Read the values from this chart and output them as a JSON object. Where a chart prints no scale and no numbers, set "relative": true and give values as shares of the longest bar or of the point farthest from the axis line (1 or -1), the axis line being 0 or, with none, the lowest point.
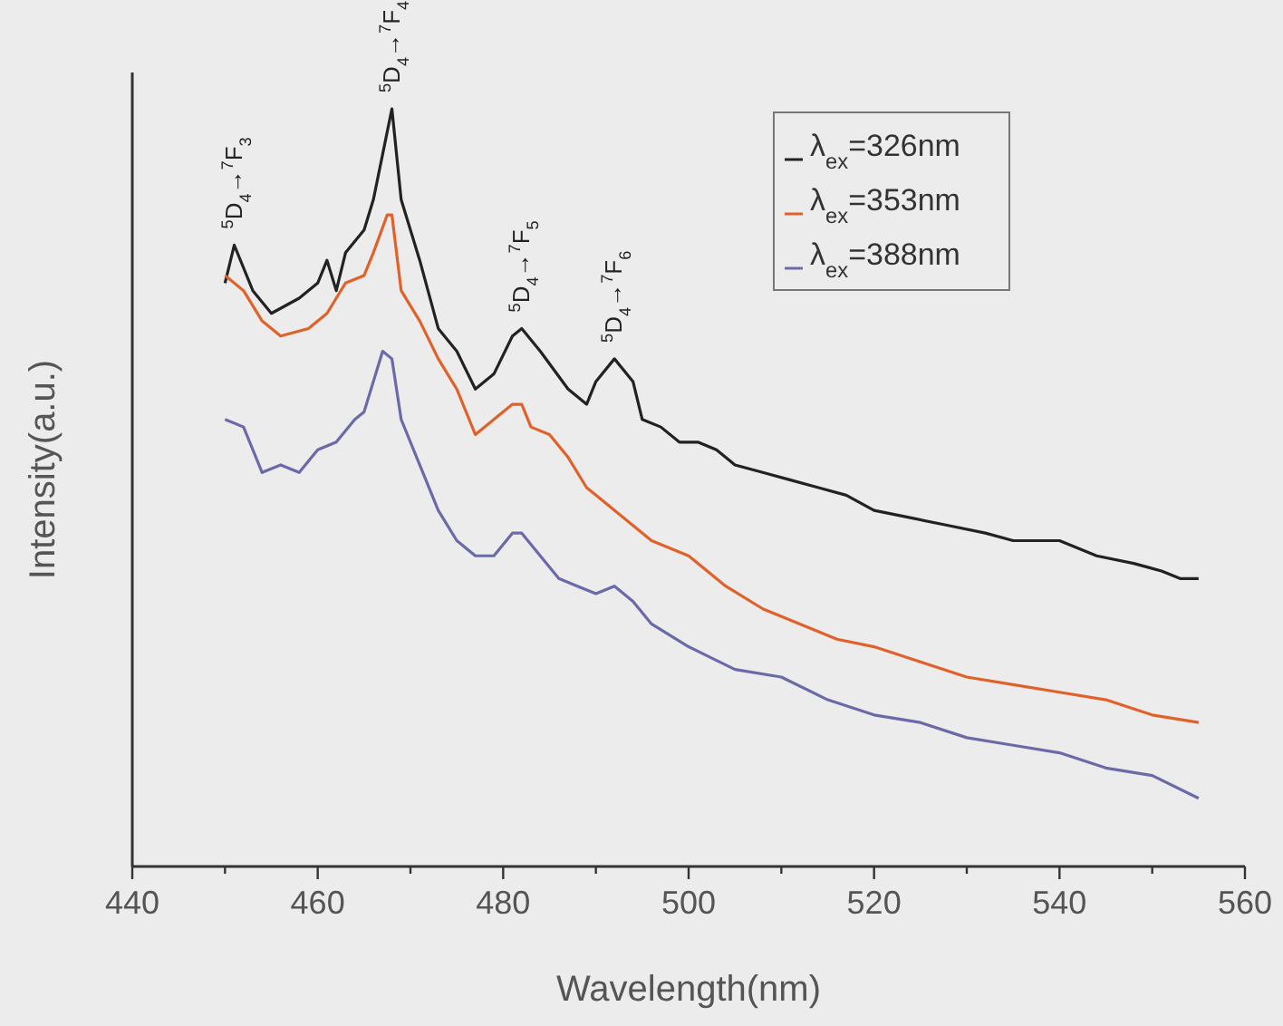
{
  "chart_data": {
    "type": "line",
    "relative": true,
    "tick_labels": "x",
    "xlabel": "Wavelength(nm)",
    "ylabel": "Intensity(a.u.)",
    "xlim": [
      440,
      560
    ],
    "xticks": [
      440,
      {
        "value": 450,
        "label": null
      },
      460,
      {
        "value": 470,
        "label": null
      },
      480,
      {
        "value": 490,
        "label": null
      },
      500,
      {
        "value": 510,
        "label": null
      },
      520,
      {
        "value": 530,
        "label": null
      },
      540,
      {
        "value": 550,
        "label": null
      },
      560
    ],
    "legend": "top right",
    "grid": false,
    "marker": "none",
    "line_style": "solid",
    "annotations": [
      {
        "text": "$^{5}$D$_{4}$→$^{7}$F$_{3}$",
        "x": 451,
        "y": 0.82
      },
      {
        "text": "$^{5}$D$_{4}$→$^{7}$F$_{4}$",
        "x": 468,
        "y": 1
      },
      {
        "text": "$^{5}$D$_{4}$→$^{7}$F$_{5}$",
        "x": 482,
        "y": 0.71
      },
      {
        "text": "$^{5}$D$_{4}$→$^{7}$F$_{6}$",
        "x": 492,
        "y": 0.67
      }
    ],
    "series": [
      {
        "name": "λ$_{ex}$=326nm",
        "color": "#222222",
        "x": [
          450,
          451,
          453,
          455,
          458,
          460,
          461,
          462,
          463,
          465,
          466,
          467.5,
          468,
          469,
          471,
          473,
          475,
          477,
          479,
          481,
          482,
          484,
          487,
          489,
          490,
          492,
          494,
          495,
          497,
          499,
          501,
          503,
          505,
          508,
          511,
          514,
          517,
          520,
          524,
          528,
          532,
          535,
          540,
          544,
          548,
          551,
          553,
          555
        ],
        "values": [
          0.77,
          0.82,
          0.76,
          0.73,
          0.75,
          0.77,
          0.8,
          0.76,
          0.81,
          0.84,
          0.88,
          0.97,
          1,
          0.88,
          0.8,
          0.71,
          0.68,
          0.63,
          0.65,
          0.7,
          0.71,
          0.68,
          0.63,
          0.61,
          0.64,
          0.67,
          0.64,
          0.59,
          0.58,
          0.56,
          0.56,
          0.55,
          0.53,
          0.52,
          0.51,
          0.5,
          0.49,
          0.47,
          0.46,
          0.45,
          0.44,
          0.43,
          0.43,
          0.41,
          0.4,
          0.39,
          0.38,
          0.38
        ]
      },
      {
        "name": "λ$_{ex}$=353nm",
        "color": "#e0622a",
        "x": [
          450,
          452,
          454,
          456,
          459,
          461,
          463,
          465,
          466,
          467.5,
          468,
          469,
          471,
          473,
          475,
          477,
          479,
          481,
          482,
          483,
          485,
          487,
          489,
          490,
          492,
          494,
          496,
          500,
          504,
          508,
          512,
          516,
          520,
          525,
          530,
          535,
          540,
          545,
          550,
          555
        ],
        "values": [
          0.78,
          0.76,
          0.72,
          0.7,
          0.71,
          0.73,
          0.77,
          0.78,
          0.81,
          0.86,
          0.86,
          0.76,
          0.72,
          0.67,
          0.63,
          0.57,
          0.59,
          0.61,
          0.61,
          0.58,
          0.57,
          0.54,
          0.5,
          0.49,
          0.47,
          0.45,
          0.43,
          0.41,
          0.37,
          0.34,
          0.32,
          0.3,
          0.29,
          0.27,
          0.25,
          0.24,
          0.23,
          0.22,
          0.2,
          0.19
        ]
      },
      {
        "name": "λ$_{ex}$=388nm",
        "color": "#6a6aa8",
        "x": [
          450,
          452,
          454,
          456,
          458,
          460,
          462,
          464,
          465,
          467,
          468,
          469,
          471,
          473,
          475,
          477,
          479,
          481,
          482,
          484,
          486,
          488,
          490,
          492,
          494,
          496,
          500,
          505,
          510,
          515,
          520,
          525,
          530,
          535,
          540,
          545,
          550,
          555
        ],
        "values": [
          0.59,
          0.58,
          0.52,
          0.53,
          0.52,
          0.55,
          0.56,
          0.59,
          0.6,
          0.68,
          0.67,
          0.59,
          0.53,
          0.47,
          0.43,
          0.41,
          0.41,
          0.44,
          0.44,
          0.41,
          0.38,
          0.37,
          0.36,
          0.37,
          0.35,
          0.32,
          0.29,
          0.26,
          0.25,
          0.22,
          0.2,
          0.19,
          0.17,
          0.16,
          0.15,
          0.13,
          0.12,
          0.09
        ]
      }
    ]
  }
}
